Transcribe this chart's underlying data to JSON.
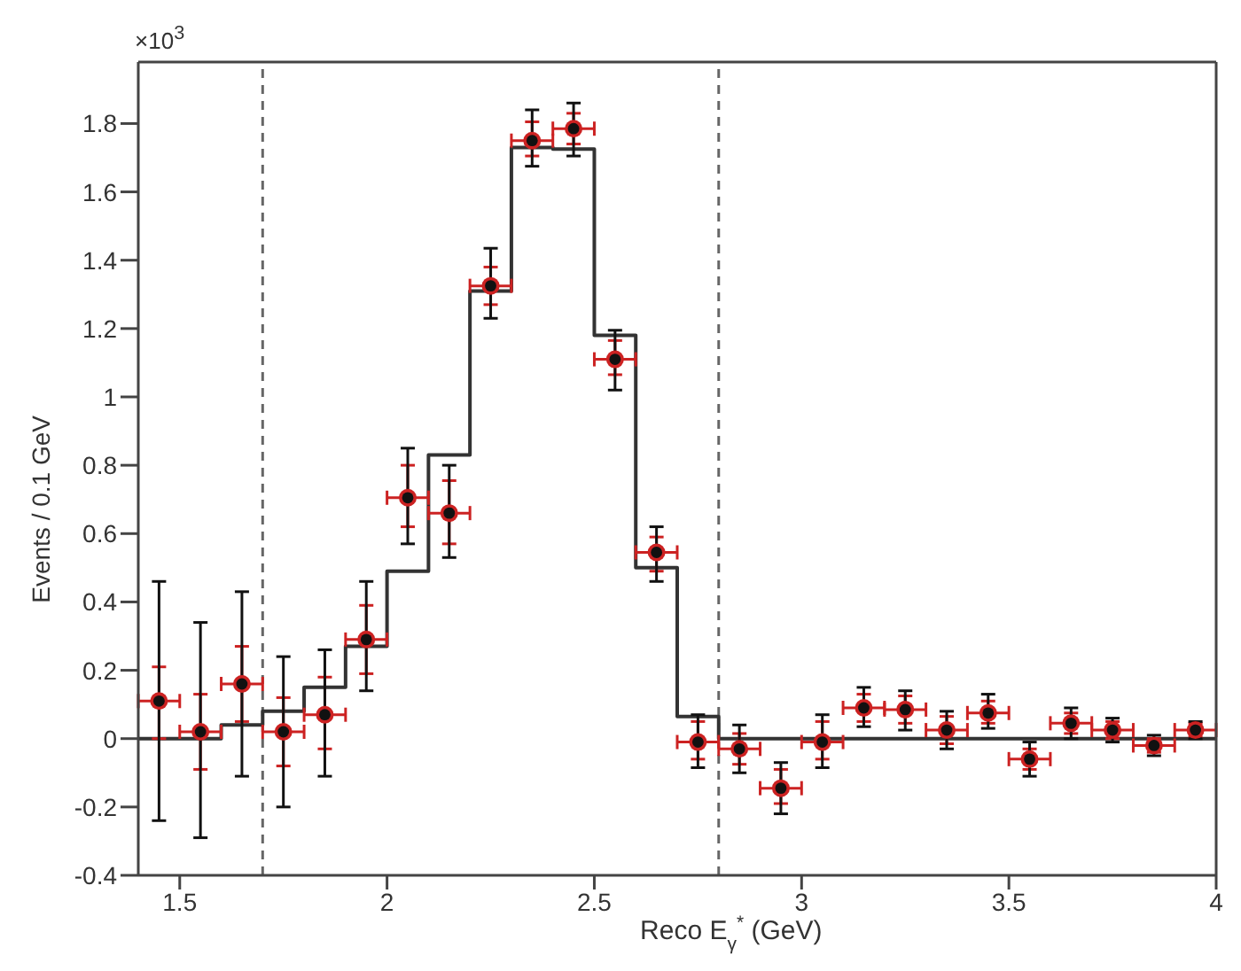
{
  "chart_data": {
    "type": "histogram",
    "xlabel": "Reco E$_{γ}$$^{*}$ (GeV)",
    "ylabel": "Events / 0.1 GeV",
    "annotations": [
      "×10$^{3}$"
    ],
    "bins": [
      1.4,
      1.5,
      1.6,
      1.7,
      1.8,
      1.9,
      2.0,
      2.1,
      2.2,
      2.3,
      2.4,
      2.5,
      2.6,
      2.7,
      2.8,
      2.9,
      3.0,
      3.1,
      3.2,
      3.3,
      3.4,
      3.5,
      3.6,
      3.7,
      3.8,
      3.9,
      4.0
    ],
    "values": [
      0,
      0,
      0.04,
      0.08,
      0.15,
      0.27,
      0.49,
      0.83,
      1.31,
      1.73,
      1.725,
      1.18,
      0.5,
      0.065,
      0,
      0,
      0,
      0,
      0,
      0,
      0,
      0,
      0,
      0,
      0,
      0
    ],
    "color": "#333333",
    "series": [
      {
        "type": "scatter",
        "color": "#cc2222",
        "marker": "circle",
        "x": [
          1.45,
          1.55,
          1.65,
          1.75,
          1.85,
          1.95,
          2.05,
          2.15,
          2.25,
          2.35,
          2.45,
          2.55,
          2.65,
          2.75,
          2.85,
          2.95,
          3.05,
          3.15,
          3.25,
          3.35,
          3.45,
          3.55,
          3.65,
          3.75,
          3.85,
          3.95
        ],
        "values": [
          0.11,
          0.02,
          0.16,
          0.02,
          0.07,
          0.29,
          0.705,
          0.66,
          1.325,
          1.75,
          1.785,
          1.11,
          0.545,
          -0.01,
          -0.03,
          -0.145,
          -0.01,
          0.09,
          0.085,
          0.025,
          0.075,
          -0.06,
          0.045,
          0.025,
          -0.02,
          0.025
        ],
        "errors": [
          [
            0,
            0.21
          ],
          [
            -0.09,
            0.13
          ],
          [
            0.05,
            0.27
          ],
          [
            -0.08,
            0.12
          ],
          [
            -0.03,
            0.18
          ],
          [
            0.19,
            0.39
          ],
          [
            0.62,
            0.8
          ],
          [
            0.57,
            0.755
          ],
          [
            1.27,
            1.38
          ],
          [
            1.705,
            1.805
          ],
          [
            1.74,
            1.83
          ],
          [
            1.065,
            1.165
          ],
          [
            0.49,
            0.59
          ],
          [
            -0.06,
            0.05
          ],
          [
            -0.075,
            0.015
          ],
          [
            -0.19,
            -0.09
          ],
          [
            -0.06,
            0.05
          ],
          [
            0.05,
            0.13
          ],
          [
            0.045,
            0.125
          ],
          [
            -0.015,
            0.065
          ],
          [
            0.045,
            0.11
          ],
          [
            -0.09,
            -0.03
          ],
          [
            0.015,
            0.075
          ],
          [
            0,
            0.05
          ],
          [
            -0.04,
            0
          ],
          [
            0.005,
            0.045
          ]
        ],
        "xerrors": [
          0.05,
          0.05,
          0.05,
          0.05,
          0.05,
          0.05,
          0.05,
          0.05,
          0.05,
          0.05,
          0.05,
          0.05,
          0.05,
          0.05,
          0.05,
          0.05,
          0.05,
          0.05,
          0.05,
          0.05,
          0.05,
          0.05,
          0.05,
          0.05,
          0.05,
          0.05
        ]
      },
      {
        "type": "scatter",
        "color": "#111111",
        "marker": "circle",
        "x": [
          1.45,
          1.55,
          1.65,
          1.75,
          1.85,
          1.95,
          2.05,
          2.15,
          2.25,
          2.35,
          2.45,
          2.55,
          2.65,
          2.75,
          2.85,
          2.95,
          3.05,
          3.15,
          3.25,
          3.35,
          3.45,
          3.55,
          3.65,
          3.75,
          3.85,
          3.95
        ],
        "values": [
          0.11,
          0.02,
          0.16,
          0.02,
          0.07,
          0.29,
          0.705,
          0.66,
          1.325,
          1.75,
          1.785,
          1.11,
          0.545,
          -0.01,
          -0.03,
          -0.145,
          -0.01,
          0.09,
          0.085,
          0.025,
          0.075,
          -0.06,
          0.045,
          0.025,
          -0.02,
          0.025
        ],
        "errors": [
          [
            -0.24,
            0.46
          ],
          [
            -0.29,
            0.34
          ],
          [
            -0.11,
            0.43
          ],
          [
            -0.2,
            0.24
          ],
          [
            -0.11,
            0.26
          ],
          [
            0.14,
            0.46
          ],
          [
            0.57,
            0.85
          ],
          [
            0.53,
            0.8
          ],
          [
            1.23,
            1.435
          ],
          [
            1.675,
            1.84
          ],
          [
            1.705,
            1.86
          ],
          [
            1.02,
            1.195
          ],
          [
            0.46,
            0.62
          ],
          [
            -0.085,
            0.07
          ],
          [
            -0.1,
            0.04
          ],
          [
            -0.22,
            -0.07
          ],
          [
            -0.085,
            0.07
          ],
          [
            0.035,
            0.15
          ],
          [
            0.025,
            0.14
          ],
          [
            -0.03,
            0.08
          ],
          [
            0.03,
            0.13
          ],
          [
            -0.11,
            -0.01
          ],
          [
            0,
            0.09
          ],
          [
            -0.01,
            0.06
          ],
          [
            -0.05,
            0.01
          ],
          [
            0,
            0.05
          ]
        ]
      }
    ],
    "ref_lines": [
      {
        "axis": "x",
        "value": 1.7,
        "line_style": "dashed",
        "color": "#666666"
      },
      {
        "axis": "x",
        "value": 2.8,
        "line_style": "dashed",
        "color": "#666666"
      }
    ],
    "xlim": [
      1.4,
      4
    ],
    "ylim": [
      -0.4,
      1.98
    ],
    "xticks": [
      1.5,
      2,
      2.5,
      3,
      3.5,
      4
    ],
    "yticks": [
      -0.4,
      -0.2,
      0,
      0.2,
      0.4,
      0.6,
      0.8,
      1,
      1.2,
      1.4,
      1.6,
      1.8
    ]
  }
}
